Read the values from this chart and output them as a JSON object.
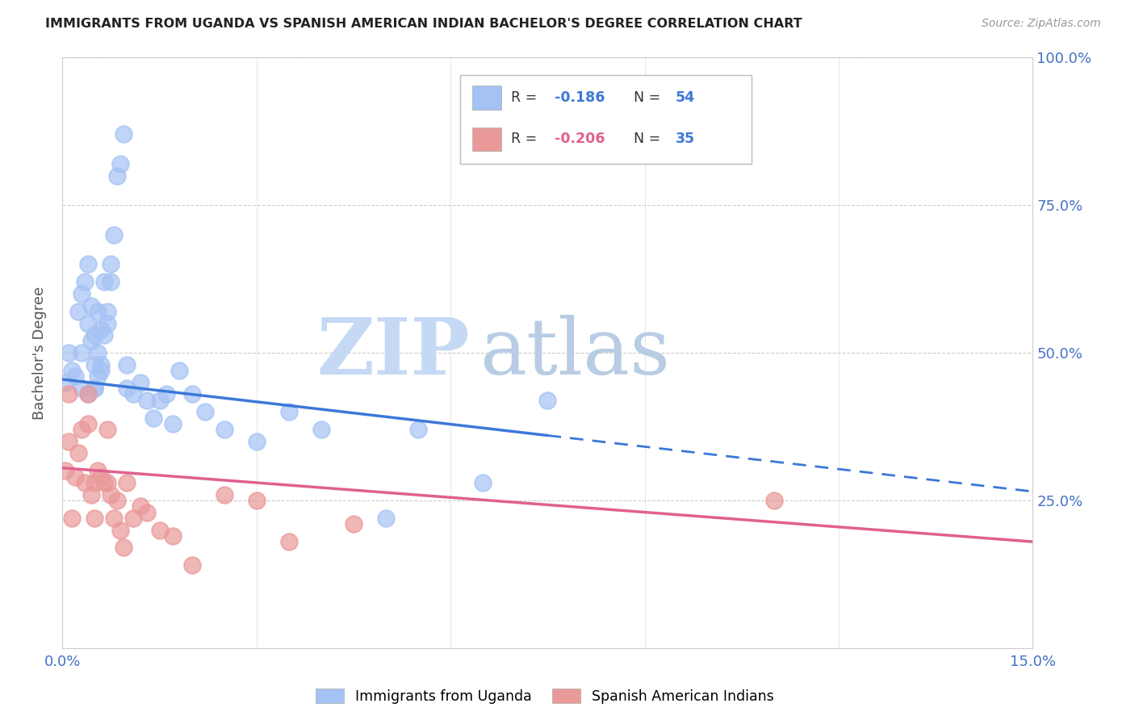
{
  "title": "IMMIGRANTS FROM UGANDA VS SPANISH AMERICAN INDIAN BACHELOR'S DEGREE CORRELATION CHART",
  "source": "Source: ZipAtlas.com",
  "ylabel": "Bachelor's Degree",
  "xmin": 0.0,
  "xmax": 15.0,
  "ymin": 0.0,
  "ymax": 100.0,
  "legend_label1": "Immigrants from Uganda",
  "legend_label2": "Spanish American Indians",
  "blue_color": "#a4c2f4",
  "pink_color": "#ea9999",
  "blue_line_color": "#3c78d8",
  "pink_line_color": "#e06090",
  "blue_scatter_x": [
    0.05,
    0.1,
    0.15,
    0.2,
    0.25,
    0.3,
    0.3,
    0.35,
    0.4,
    0.4,
    0.45,
    0.45,
    0.5,
    0.5,
    0.5,
    0.55,
    0.55,
    0.6,
    0.6,
    0.65,
    0.7,
    0.75,
    0.8,
    0.85,
    0.9,
    0.95,
    1.0,
    1.0,
    1.1,
    1.2,
    1.3,
    1.4,
    1.5,
    1.6,
    1.7,
    1.8,
    2.0,
    2.2,
    2.5,
    3.0,
    3.5,
    4.0,
    5.0,
    5.5,
    6.5,
    7.5,
    0.3,
    0.4,
    0.5,
    0.55,
    0.6,
    0.65,
    0.7,
    0.75
  ],
  "blue_scatter_y": [
    45,
    50,
    47,
    46,
    57,
    60,
    50,
    62,
    65,
    55,
    58,
    52,
    53,
    48,
    44,
    57,
    50,
    54,
    47,
    62,
    57,
    65,
    70,
    80,
    82,
    87,
    44,
    48,
    43,
    45,
    42,
    39,
    42,
    43,
    38,
    47,
    43,
    40,
    37,
    35,
    40,
    37,
    22,
    37,
    28,
    42,
    44,
    43,
    44,
    46,
    48,
    53,
    55,
    62
  ],
  "pink_scatter_x": [
    0.05,
    0.1,
    0.1,
    0.15,
    0.2,
    0.25,
    0.3,
    0.35,
    0.4,
    0.4,
    0.45,
    0.5,
    0.5,
    0.55,
    0.6,
    0.65,
    0.7,
    0.7,
    0.75,
    0.8,
    0.85,
    0.9,
    0.95,
    1.0,
    1.1,
    1.2,
    1.3,
    1.5,
    1.7,
    2.0,
    2.5,
    3.0,
    3.5,
    4.5,
    11.0
  ],
  "pink_scatter_y": [
    30,
    43,
    35,
    22,
    29,
    33,
    37,
    28,
    43,
    38,
    26,
    28,
    22,
    30,
    29,
    28,
    37,
    28,
    26,
    22,
    25,
    20,
    17,
    28,
    22,
    24,
    23,
    20,
    19,
    14,
    26,
    25,
    18,
    21,
    25
  ],
  "blue_line_x0": 0.0,
  "blue_line_y0": 45.5,
  "blue_line_x1": 7.5,
  "blue_line_y1": 36.0,
  "blue_dash_x0": 7.5,
  "blue_dash_y0": 36.0,
  "blue_dash_x1": 15.0,
  "blue_dash_y1": 26.5,
  "pink_line_x0": 0.0,
  "pink_line_y0": 30.5,
  "pink_line_x1": 15.0,
  "pink_line_y1": 18.0,
  "watermark_zip": "ZIP",
  "watermark_atlas": "atlas",
  "grid_color": "#cccccc",
  "background_color": "#ffffff"
}
